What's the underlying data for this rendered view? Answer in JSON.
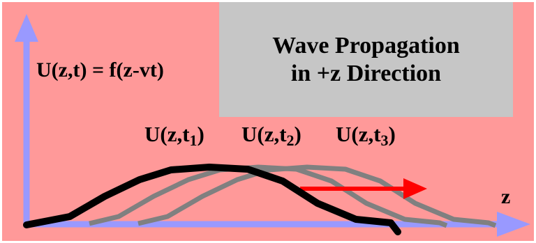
{
  "title": {
    "line1": "Wave Propagation",
    "line2": "in +z Direction"
  },
  "formula": "U(z,t) = f(z-vt)",
  "curve_labels": [
    {
      "main": "U(z,t",
      "sub": "1",
      "close": ")"
    },
    {
      "main": "U(z,t",
      "sub": "2",
      "close": ")"
    },
    {
      "main": "U(z,t",
      "sub": "3",
      "close": ")"
    }
  ],
  "axis": {
    "horizontal_label": "z"
  },
  "colors": {
    "background": "#ff9999",
    "title_box": "#c6c6c6",
    "axis": "#9999ff",
    "pulse_current": "#000000",
    "pulse_later": "#808080",
    "propagation_arrow": "#ff0000"
  },
  "pulses": [
    {
      "name": "t1",
      "shift": 0,
      "emphasis": "bold"
    },
    {
      "name": "t2",
      "shift": 70,
      "emphasis": "faded"
    },
    {
      "name": "t3",
      "shift": 140,
      "emphasis": "faded"
    }
  ]
}
